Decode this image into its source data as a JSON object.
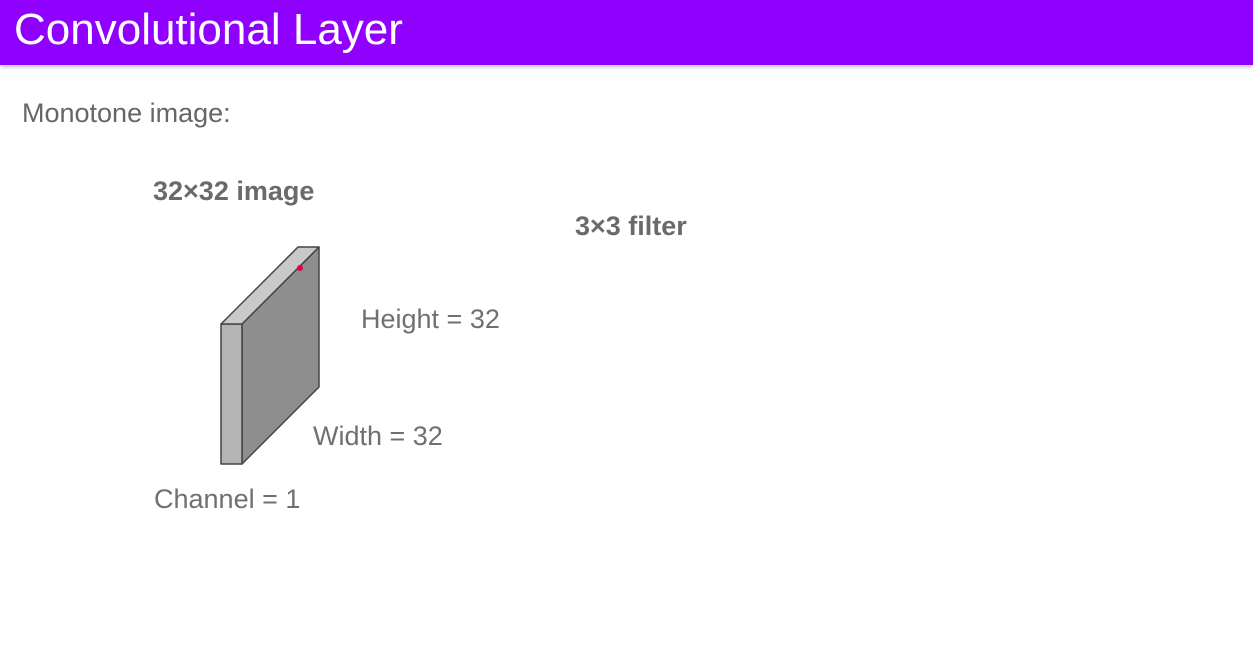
{
  "header": {
    "title": "Convolutional Layer",
    "background": "#8f00ff"
  },
  "content": {
    "subtitle": "Monotone image:",
    "image_label": "32×32 image",
    "filter_label": "3×3 filter",
    "height_label": "Height = 32",
    "width_label": "Width = 32",
    "channel_label": "Channel = 1"
  },
  "colors": {
    "front_face": "#8e8e8e",
    "side_face": "#b4b4b4",
    "top_face": "#c9c9c9",
    "edge": "#444444",
    "pointer_dot": "#e0004d"
  }
}
